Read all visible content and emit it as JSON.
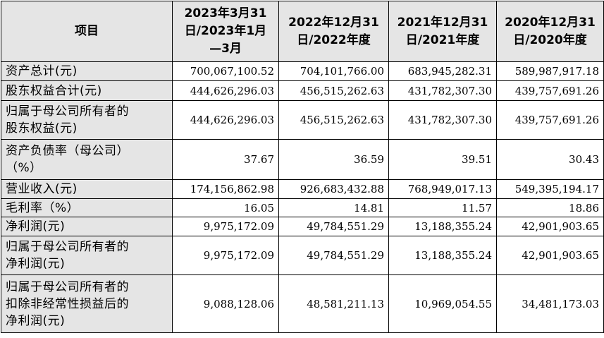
{
  "table": {
    "headers": [
      "项目",
      "2023年3月31\n日/2023年1月\n—3月",
      "2022年12月31\n日/2022年度",
      "2021年12月31\n日/2021年度",
      "2020年12月31\n日/2020年度"
    ],
    "rows": [
      {
        "label": "资产总计(元)",
        "values": [
          "700,067,100.52",
          "704,101,766.00",
          "683,945,282.31",
          "589,987,917.18"
        ]
      },
      {
        "label": "股东权益合计(元)",
        "values": [
          "444,626,296.03",
          "456,515,262.63",
          "431,782,307.30",
          "439,757,691.26"
        ]
      },
      {
        "label": "归属于母公司所有者的\n股东权益(元)",
        "values": [
          "444,626,296.03",
          "456,515,262.63",
          "431,782,307.30",
          "439,757,691.26"
        ]
      },
      {
        "label": "资产负债率（母公司）\n（%）",
        "values": [
          "37.67",
          "36.59",
          "39.51",
          "30.43"
        ]
      },
      {
        "label": "营业收入(元)",
        "values": [
          "174,156,862.98",
          "926,683,432.88",
          "768,949,017.13",
          "549,395,194.17"
        ]
      },
      {
        "label": "毛利率（%）",
        "values": [
          "16.05",
          "14.81",
          "11.57",
          "18.86"
        ]
      },
      {
        "label": "净利润(元)",
        "values": [
          "9,975,172.09",
          "49,784,551.29",
          "13,188,355.24",
          "42,901,903.65"
        ]
      },
      {
        "label": "归属于母公司所有者的\n净利润(元)",
        "values": [
          "9,975,172.09",
          "49,784,551.29",
          "13,188,355.24",
          "42,901,903.65"
        ]
      },
      {
        "label": "归属于母公司所有者的\n扣除非经常性损益后的\n净利润(元)",
        "values": [
          "9,088,128.06",
          "48,581,211.13",
          "10,969,054.55",
          "34,481,173.03"
        ]
      }
    ]
  }
}
